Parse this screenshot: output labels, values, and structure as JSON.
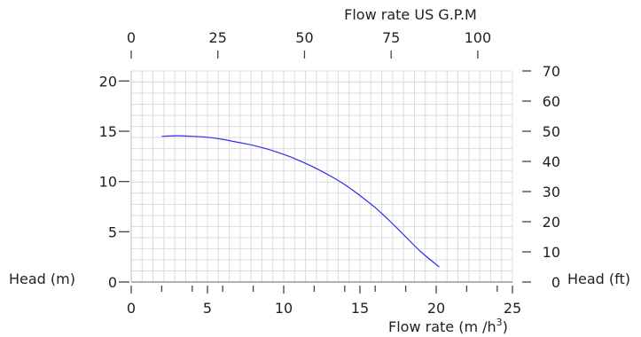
{
  "chart_data": {
    "type": "line",
    "title": "",
    "axes": {
      "x_bottom": {
        "label": "Flow rate  (m /h",
        "label_superscript": "3",
        "label_close": ")",
        "range": [
          0,
          25
        ],
        "ticks": [
          "0",
          "5",
          "10",
          "15",
          "20",
          "25"
        ]
      },
      "x_top": {
        "label": "Flow rate US  G.P.M",
        "range": [
          0,
          110
        ],
        "ticks": [
          "0",
          "25",
          "50",
          "75",
          "100"
        ]
      },
      "y_left": {
        "label": "Head (m)",
        "range": [
          0,
          21
        ],
        "ticks": [
          "0",
          "5",
          "10",
          "15",
          "20"
        ]
      },
      "y_right": {
        "label": "Head (ft)",
        "range": [
          0,
          70
        ],
        "ticks": [
          "0",
          "10",
          "20",
          "30",
          "40",
          "50",
          "60",
          "70"
        ]
      }
    },
    "grid": true,
    "series": [
      {
        "color": "#2d2df0",
        "x": [
          2,
          3,
          4,
          5,
          6,
          7,
          8,
          9,
          10,
          11,
          12,
          13,
          14,
          15,
          16,
          17,
          18,
          19,
          20.2
        ],
        "y": [
          14.5,
          14.55,
          14.5,
          14.4,
          14.2,
          13.9,
          13.6,
          13.2,
          12.7,
          12.1,
          11.4,
          10.6,
          9.7,
          8.6,
          7.4,
          6.0,
          4.5,
          3.0,
          1.5
        ]
      }
    ]
  }
}
